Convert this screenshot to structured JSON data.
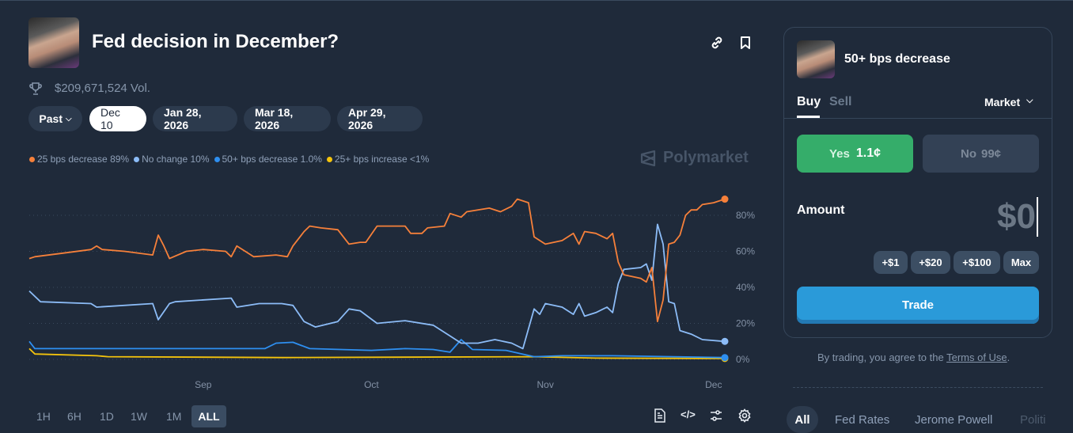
{
  "header": {
    "title": "Fed decision in December?",
    "volume": "$209,671,524 Vol.",
    "link_icon": "link-icon",
    "bookmark_icon": "bookmark-icon"
  },
  "date_tabs": [
    {
      "label": "Past"
    },
    {
      "label": "Dec 10",
      "active": true
    },
    {
      "label": "Jan 28, 2026"
    },
    {
      "label": "Mar 18, 2026"
    },
    {
      "label": "Apr 29, 2026"
    }
  ],
  "legend": [
    {
      "label": "25 bps decrease 89%",
      "color": "#f6803a"
    },
    {
      "label": "No change 10%",
      "color": "#8cbcf7"
    },
    {
      "label": "50+ bps decrease 1.0%",
      "color": "#2e8ff0"
    },
    {
      "label": "25+ bps increase <1%",
      "color": "#f5c40c"
    }
  ],
  "brand": "Polymarket",
  "time_ranges": [
    "1H",
    "6H",
    "1D",
    "1W",
    "1M",
    "ALL"
  ],
  "active_range": "ALL",
  "chart_data": {
    "type": "line",
    "xlim": [
      "2025-08-01",
      "2025-12-03"
    ],
    "ylim": [
      0,
      90
    ],
    "yticks": [
      0,
      20,
      40,
      60,
      80
    ],
    "ytick_labels": [
      "0%",
      "20%",
      "40%",
      "60%",
      "80%"
    ],
    "xticks": [
      "2025-09-01",
      "2025-10-01",
      "2025-11-01",
      "2025-12-01"
    ],
    "xtick_labels": [
      "Sep",
      "Oct",
      "Nov",
      "Dec"
    ],
    "grid": true,
    "series": [
      {
        "name": "25 bps decrease",
        "color": "#f6803a",
        "points": [
          [
            "2025-08-01",
            56
          ],
          [
            "2025-08-02",
            57
          ],
          [
            "2025-08-07",
            59
          ],
          [
            "2025-08-12",
            61
          ],
          [
            "2025-08-13",
            63
          ],
          [
            "2025-08-14",
            61
          ],
          [
            "2025-08-18",
            60
          ],
          [
            "2025-08-23",
            58
          ],
          [
            "2025-08-24",
            69
          ],
          [
            "2025-08-25",
            63
          ],
          [
            "2025-08-26",
            56
          ],
          [
            "2025-08-29",
            60
          ],
          [
            "2025-09-01",
            61
          ],
          [
            "2025-09-05",
            60
          ],
          [
            "2025-09-06",
            57
          ],
          [
            "2025-09-07",
            63
          ],
          [
            "2025-09-08",
            61
          ],
          [
            "2025-09-10",
            57
          ],
          [
            "2025-09-14",
            58
          ],
          [
            "2025-09-16",
            57
          ],
          [
            "2025-09-17",
            63
          ],
          [
            "2025-09-19",
            71
          ],
          [
            "2025-09-20",
            74
          ],
          [
            "2025-09-22",
            73
          ],
          [
            "2025-09-25",
            72
          ],
          [
            "2025-09-27",
            64
          ],
          [
            "2025-09-29",
            65
          ],
          [
            "2025-09-30",
            65
          ],
          [
            "2025-10-02",
            74
          ],
          [
            "2025-10-07",
            74
          ],
          [
            "2025-10-08",
            70
          ],
          [
            "2025-10-10",
            70
          ],
          [
            "2025-10-11",
            73
          ],
          [
            "2025-10-14",
            74
          ],
          [
            "2025-10-15",
            81
          ],
          [
            "2025-10-17",
            79
          ],
          [
            "2025-10-18",
            82
          ],
          [
            "2025-10-22",
            84
          ],
          [
            "2025-10-24",
            82
          ],
          [
            "2025-10-26",
            85
          ],
          [
            "2025-10-27",
            89
          ],
          [
            "2025-10-29",
            87
          ],
          [
            "2025-10-30",
            68
          ],
          [
            "2025-11-01",
            64
          ],
          [
            "2025-11-04",
            66
          ],
          [
            "2025-11-06",
            70
          ],
          [
            "2025-11-07",
            64
          ],
          [
            "2025-11-08",
            71
          ],
          [
            "2025-11-10",
            70
          ],
          [
            "2025-11-12",
            67
          ],
          [
            "2025-11-13",
            70
          ],
          [
            "2025-11-14",
            54
          ],
          [
            "2025-11-15",
            47
          ],
          [
            "2025-11-18",
            45
          ],
          [
            "2025-11-19",
            43
          ],
          [
            "2025-11-20",
            51
          ],
          [
            "2025-11-21",
            21
          ],
          [
            "2025-11-22",
            33
          ],
          [
            "2025-11-23",
            64
          ],
          [
            "2025-11-24",
            65
          ],
          [
            "2025-11-25",
            69
          ],
          [
            "2025-11-26",
            80
          ],
          [
            "2025-11-27",
            83
          ],
          [
            "2025-11-28",
            83
          ],
          [
            "2025-11-29",
            86
          ],
          [
            "2025-12-01",
            87
          ],
          [
            "2025-12-03",
            89
          ]
        ]
      },
      {
        "name": "No change",
        "color": "#8cbcf7",
        "points": [
          [
            "2025-08-01",
            38
          ],
          [
            "2025-08-03",
            32
          ],
          [
            "2025-08-12",
            31
          ],
          [
            "2025-08-13",
            29
          ],
          [
            "2025-08-23",
            31
          ],
          [
            "2025-08-24",
            22
          ],
          [
            "2025-08-26",
            31
          ],
          [
            "2025-08-27",
            32
          ],
          [
            "2025-09-06",
            34
          ],
          [
            "2025-09-07",
            29
          ],
          [
            "2025-09-11",
            31
          ],
          [
            "2025-09-15",
            31
          ],
          [
            "2025-09-17",
            30
          ],
          [
            "2025-09-19",
            21
          ],
          [
            "2025-09-21",
            18
          ],
          [
            "2025-09-25",
            21
          ],
          [
            "2025-09-27",
            28
          ],
          [
            "2025-09-29",
            27
          ],
          [
            "2025-10-02",
            20
          ],
          [
            "2025-10-07",
            21.5
          ],
          [
            "2025-10-12",
            19
          ],
          [
            "2025-10-15",
            13
          ],
          [
            "2025-10-17",
            9
          ],
          [
            "2025-10-20",
            9
          ],
          [
            "2025-10-23",
            11
          ],
          [
            "2025-10-26",
            9
          ],
          [
            "2025-10-28",
            6
          ],
          [
            "2025-10-29",
            17
          ],
          [
            "2025-10-30",
            28
          ],
          [
            "2025-10-31",
            25
          ],
          [
            "2025-11-01",
            31
          ],
          [
            "2025-11-04",
            29
          ],
          [
            "2025-11-06",
            25
          ],
          [
            "2025-11-07",
            31
          ],
          [
            "2025-11-08",
            24
          ],
          [
            "2025-11-10",
            26
          ],
          [
            "2025-11-12",
            29
          ],
          [
            "2025-11-13",
            26
          ],
          [
            "2025-11-14",
            42
          ],
          [
            "2025-11-15",
            50
          ],
          [
            "2025-11-18",
            51
          ],
          [
            "2025-11-19",
            53
          ],
          [
            "2025-11-20",
            44
          ],
          [
            "2025-11-21",
            75
          ],
          [
            "2025-11-22",
            64
          ],
          [
            "2025-11-23",
            32
          ],
          [
            "2025-11-24",
            31
          ],
          [
            "2025-11-25",
            16
          ],
          [
            "2025-11-27",
            14
          ],
          [
            "2025-11-29",
            11
          ],
          [
            "2025-12-03",
            10
          ]
        ]
      },
      {
        "name": "50+ bps decrease",
        "color": "#2e8ff0",
        "points": [
          [
            "2025-08-01",
            10
          ],
          [
            "2025-08-02",
            6
          ],
          [
            "2025-08-20",
            6
          ],
          [
            "2025-09-12",
            6
          ],
          [
            "2025-09-14",
            9
          ],
          [
            "2025-09-17",
            9.5
          ],
          [
            "2025-09-20",
            6
          ],
          [
            "2025-10-01",
            5
          ],
          [
            "2025-10-07",
            6
          ],
          [
            "2025-10-12",
            5.5
          ],
          [
            "2025-10-15",
            4
          ],
          [
            "2025-10-17",
            11
          ],
          [
            "2025-10-19",
            5.5
          ],
          [
            "2025-10-25",
            5
          ],
          [
            "2025-10-30",
            1.5
          ],
          [
            "2025-11-04",
            2
          ],
          [
            "2025-11-13",
            2
          ],
          [
            "2025-12-03",
            1
          ]
        ]
      },
      {
        "name": "25+ bps increase",
        "color": "#f5c40c",
        "points": [
          [
            "2025-08-01",
            6
          ],
          [
            "2025-08-02",
            3
          ],
          [
            "2025-08-13",
            2
          ],
          [
            "2025-08-15",
            1.5
          ],
          [
            "2025-09-15",
            1
          ],
          [
            "2025-10-30",
            1.5
          ],
          [
            "2025-11-10",
            0.7
          ],
          [
            "2025-12-03",
            0.5
          ]
        ]
      }
    ]
  },
  "tools": [
    {
      "icon": "document-icon",
      "glyph": "🗎"
    },
    {
      "icon": "embed-code-icon",
      "glyph": "</>"
    },
    {
      "icon": "sliders-icon",
      "glyph": "⚌"
    },
    {
      "icon": "settings-icon",
      "glyph": "⚙"
    }
  ],
  "trade": {
    "outcome": "50+ bps decrease",
    "tabs": [
      "Buy",
      "Sell"
    ],
    "order_type": "Market",
    "yes_label": "Yes",
    "yes_price": "1.1¢",
    "no_label": "No",
    "no_price": "99¢",
    "amount_label": "Amount",
    "amount_value": "$0",
    "quick_amounts": [
      "+$1",
      "+$20",
      "+$100",
      "Max"
    ],
    "trade_button": "Trade",
    "terms_prefix": "By trading, you agree to the ",
    "terms_link": "Terms of Use",
    "terms_suffix": "."
  },
  "tags": [
    "All",
    "Fed Rates",
    "Jerome Powell",
    "Politi"
  ]
}
